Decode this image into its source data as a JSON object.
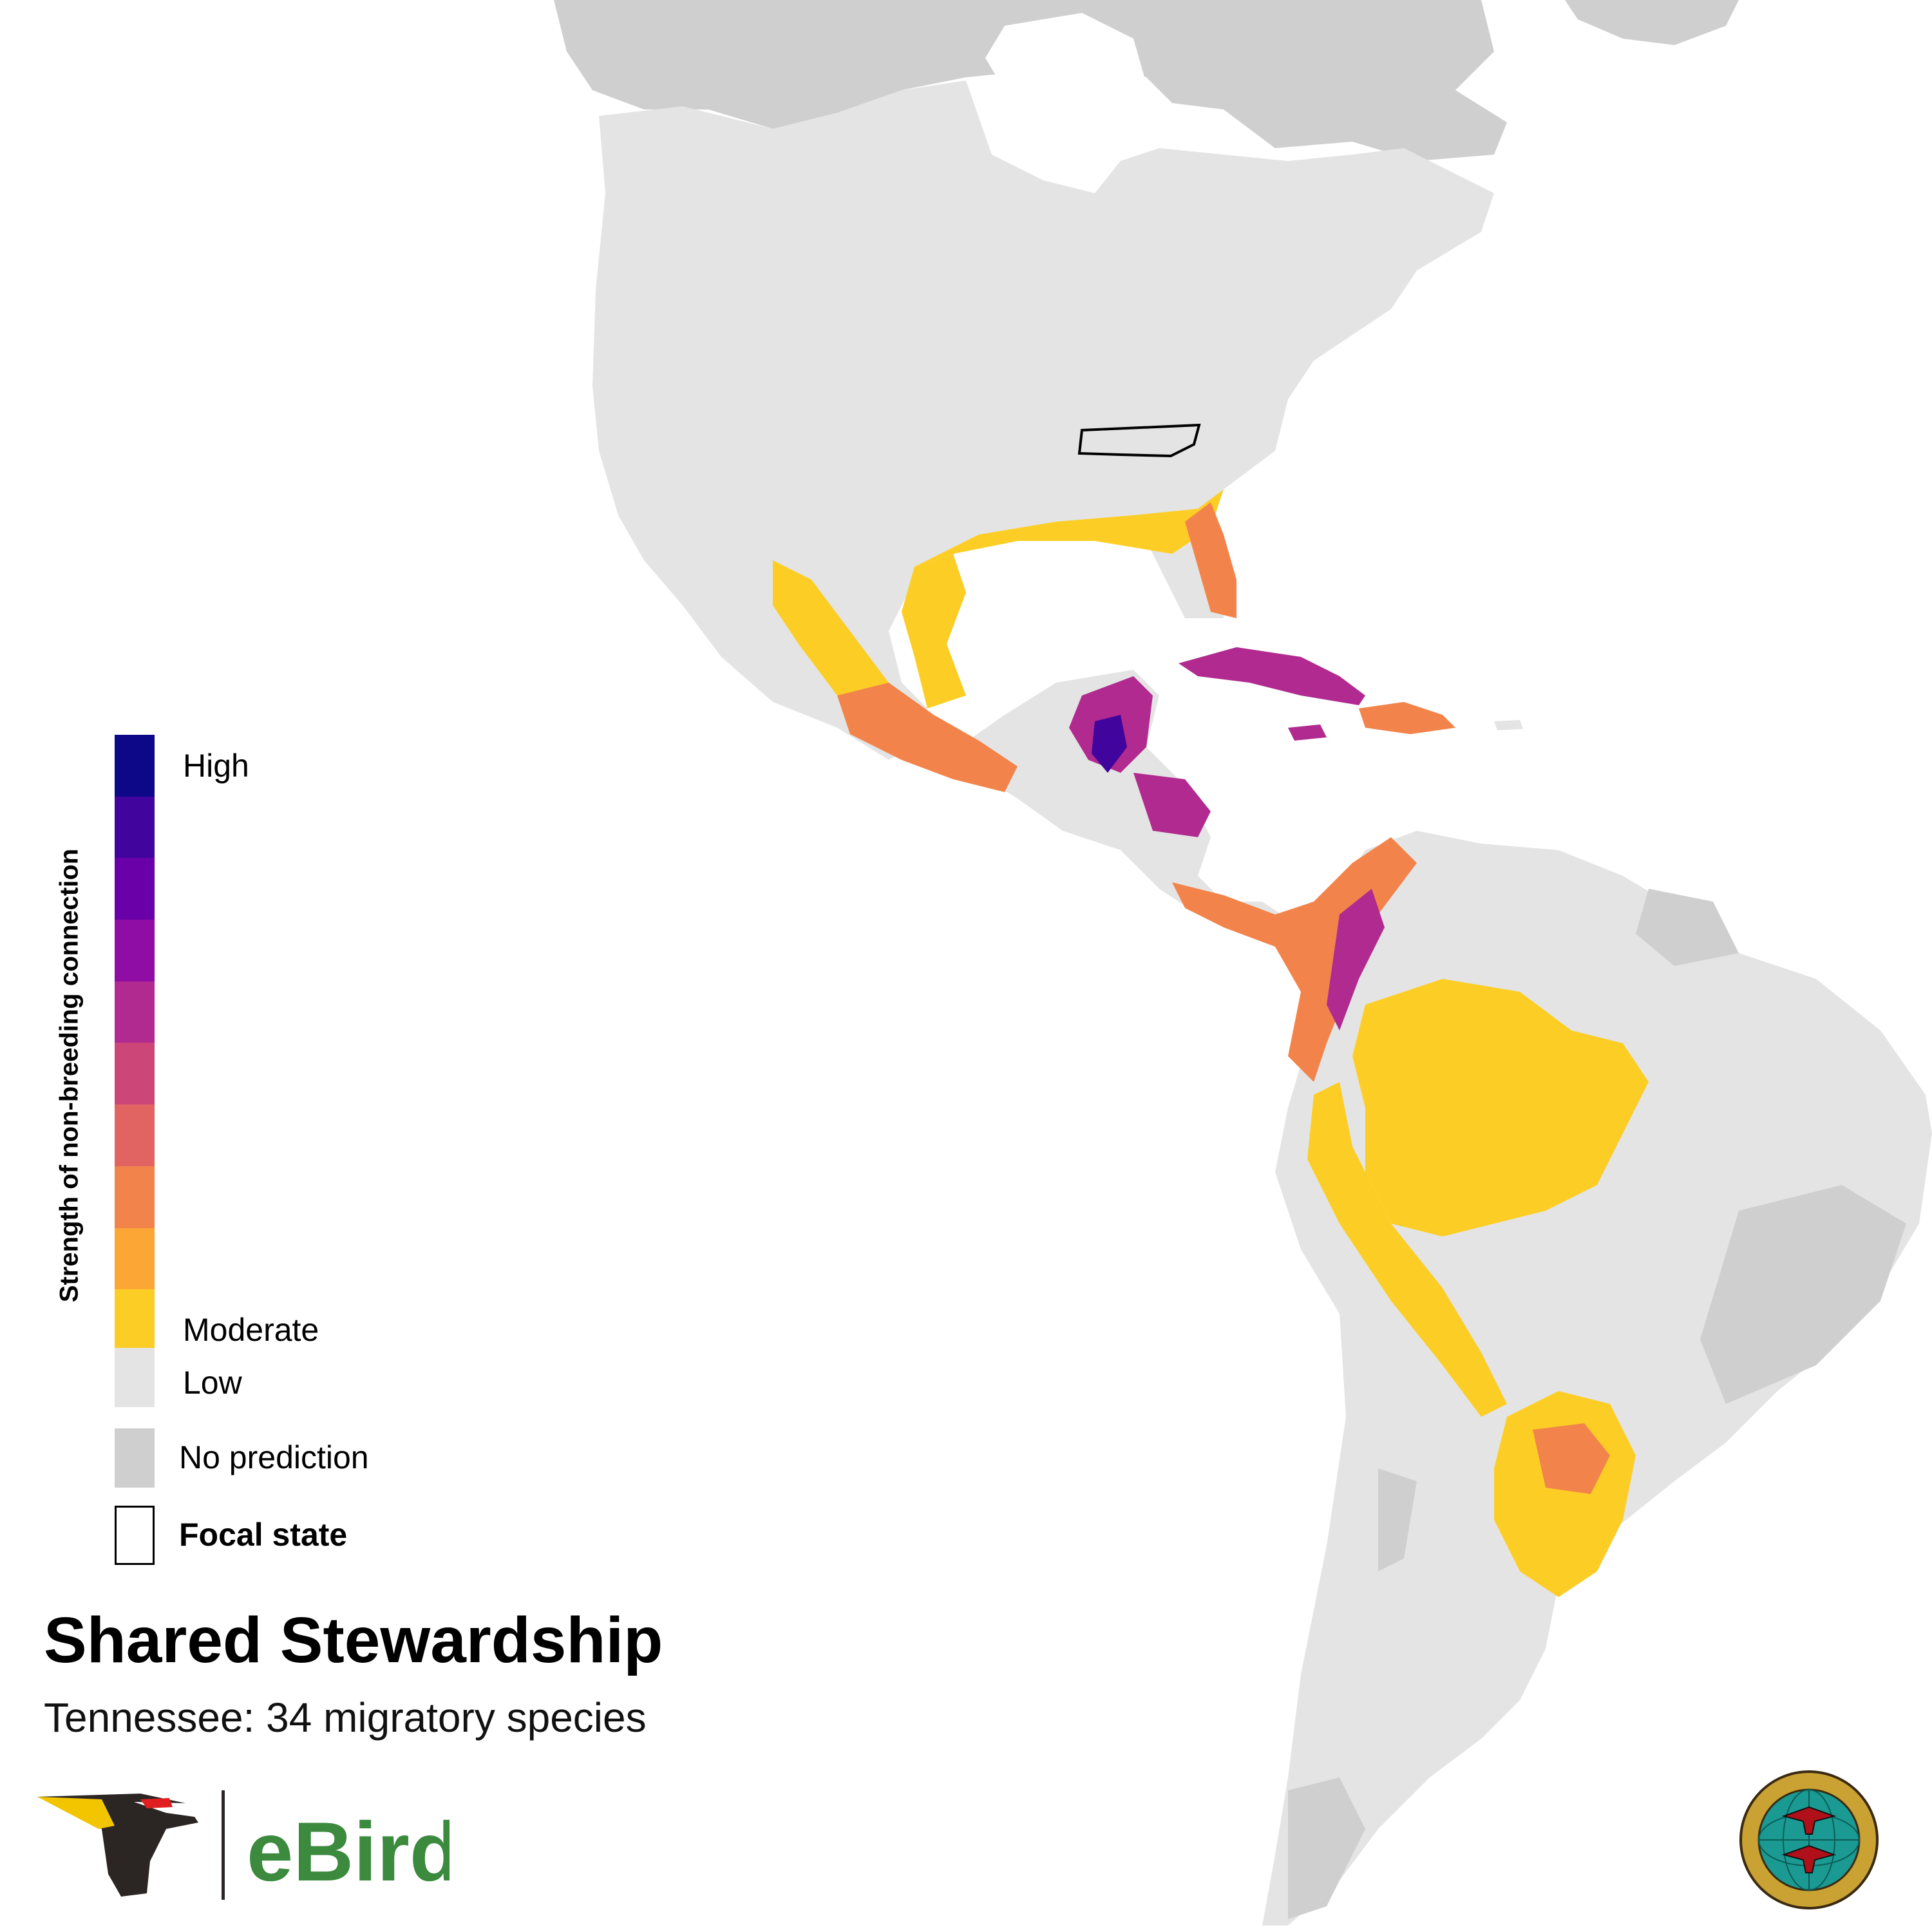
{
  "map": {
    "focal_region": "Tennessee",
    "colors": {
      "ocean": "#ffffff",
      "land_low": "#e4e4e4",
      "land_no_prediction": "#cfcfcf",
      "borders": "#f5f5f5",
      "focal_outline": "#000000"
    }
  },
  "legend": {
    "title": "Strength of non-breeding connection",
    "high_label": "High",
    "moderate_label": "Moderate",
    "low_label": "Low",
    "no_prediction_label": "No prediction",
    "focal_label": "Focal state",
    "ramp": [
      "#0d0887",
      "#41049d",
      "#6a00a8",
      "#8f0da4",
      "#b12a90",
      "#cc4778",
      "#e16462",
      "#f2844b",
      "#fca636",
      "#fcce25"
    ],
    "low_color": "#e4e4e4",
    "no_prediction_color": "#cfcfcf"
  },
  "title": "Shared Stewardship",
  "subtitle": "Tennessee: 34 migratory species",
  "branding": {
    "ebird_logo_text": "eBird",
    "ebird_logo_color": "#3b8a3e",
    "seal_label": "Partners in Flight seal"
  }
}
